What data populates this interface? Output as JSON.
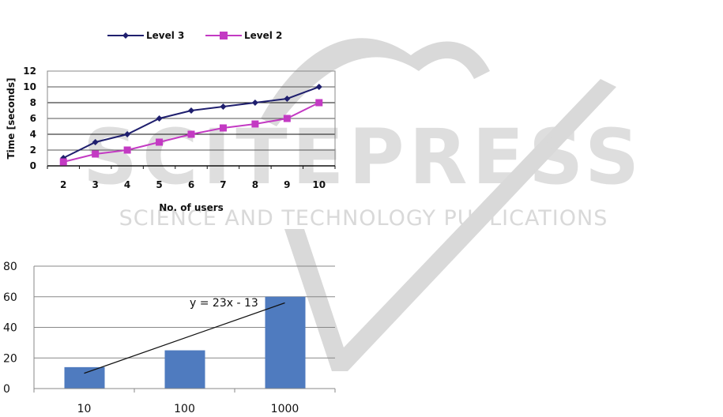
{
  "watermark": {
    "title": "SCITEPRESS",
    "subtitle": "SCIENCE AND TECHNOLOGY PUBLICATIONS",
    "color": "#d9d9d9"
  },
  "chart_data": [
    {
      "type": "line",
      "title": "",
      "xlabel": "No. of users",
      "ylabel": "Time [seconds]",
      "categories": [
        "2",
        "3",
        "4",
        "5",
        "6",
        "7",
        "8",
        "9",
        "10"
      ],
      "ylim": [
        0,
        12
      ],
      "yticks": [
        "0",
        "2",
        "4",
        "6",
        "8",
        "10",
        "12"
      ],
      "grid": true,
      "legend": "top",
      "series": [
        {
          "name": "Level 3",
          "color": "#1f1f6e",
          "marker": "diamond",
          "values": [
            1,
            3,
            4,
            6,
            7,
            7.5,
            8,
            8.5,
            10
          ]
        },
        {
          "name": "Level 2",
          "color": "#c33ac3",
          "marker": "square",
          "values": [
            0.5,
            1.5,
            2,
            3,
            4,
            4.8,
            5.3,
            6,
            8
          ]
        }
      ]
    },
    {
      "type": "bar",
      "title": "",
      "xlabel": "",
      "ylabel": "",
      "categories": [
        "10",
        "100",
        "1000"
      ],
      "values": [
        14,
        25,
        60
      ],
      "ylim": [
        0,
        80
      ],
      "yticks": [
        "0",
        "20",
        "40",
        "60",
        "80"
      ],
      "grid": true,
      "color": "#4f7bbf",
      "trendline": {
        "label": "y = 23x - 13",
        "start": 10,
        "end": 56
      }
    }
  ]
}
